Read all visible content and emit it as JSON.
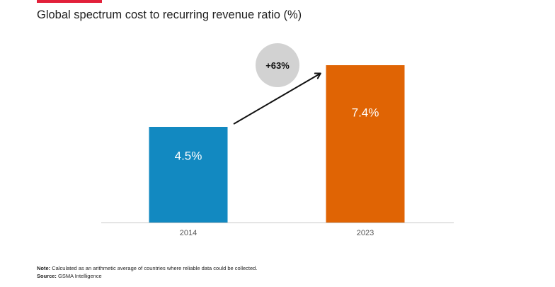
{
  "page": {
    "accent_color": "#e2203a"
  },
  "chart_data": {
    "type": "bar",
    "title": "Global spectrum cost to recurring revenue ratio (%)",
    "categories": [
      "2014",
      "2023"
    ],
    "values": [
      4.5,
      7.4
    ],
    "data_labels": [
      "4.5%",
      "7.4%"
    ],
    "colors": [
      "#1289c1",
      "#e06404"
    ],
    "ylim": [
      0,
      8
    ],
    "xlabel": "",
    "ylabel": "",
    "grid": false,
    "annotation": {
      "text": "+63%",
      "from": "2014",
      "to": "2023",
      "bubble_color": "#d2d2d2",
      "icon": "arrow-up-right-icon"
    }
  },
  "notes": {
    "note_label": "Note:",
    "note_text": "Calculated as an arithmetic average of countries where reliable data could be collected.",
    "source_label": "Source:",
    "source_text": "GSMA Intelligence"
  }
}
